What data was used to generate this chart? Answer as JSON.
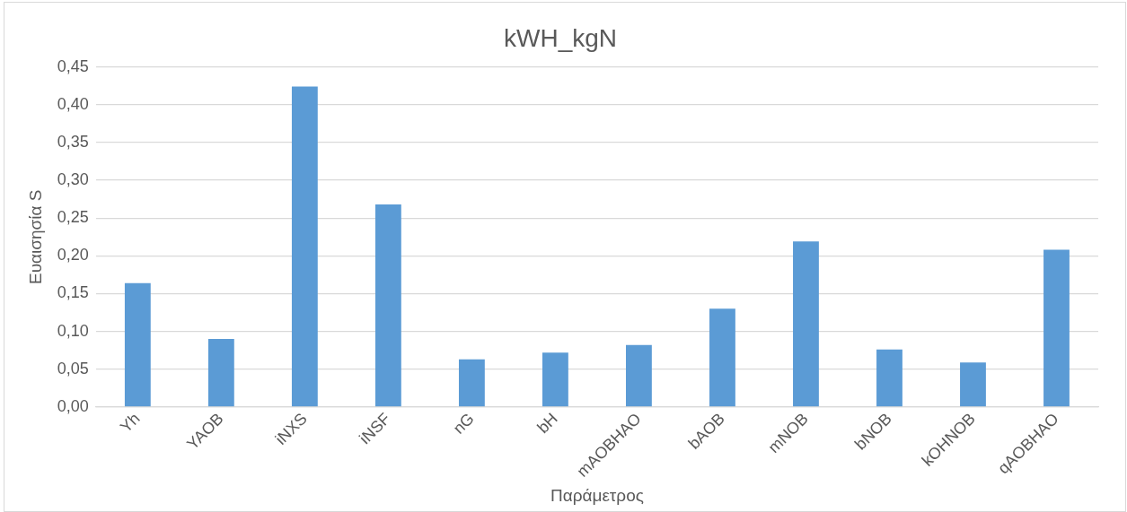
{
  "chart_data": {
    "type": "bar",
    "title": "kWH_kgN",
    "xlabel": "Παράμετρος",
    "ylabel": "Ευαισησία S",
    "categories": [
      "Yh",
      "YAOB",
      "iNXS",
      "iNSF",
      "nG",
      "bH",
      "mAOBHAO",
      "bAOB",
      "mNOB",
      "bNOB",
      "kOHNOB",
      "qAOBHAO"
    ],
    "values": [
      0.164,
      0.09,
      0.424,
      0.268,
      0.063,
      0.072,
      0.082,
      0.13,
      0.219,
      0.076,
      0.059,
      0.208
    ],
    "color": "#5b9bd5",
    "ylim": [
      0,
      0.45
    ],
    "yticks": [
      {
        "value": 0,
        "label": "0,00"
      },
      {
        "value": 0.05,
        "label": "0,05"
      },
      {
        "value": 0.1,
        "label": "0,10"
      },
      {
        "value": 0.15,
        "label": "0,15"
      },
      {
        "value": 0.2,
        "label": "0,20"
      },
      {
        "value": 0.25,
        "label": "0,25"
      },
      {
        "value": 0.3,
        "label": "0,30"
      },
      {
        "value": 0.35,
        "label": "0,35"
      },
      {
        "value": 0.4,
        "label": "0,40"
      },
      {
        "value": 0.45,
        "label": "0,45"
      }
    ],
    "grid": "y",
    "legend": false
  }
}
